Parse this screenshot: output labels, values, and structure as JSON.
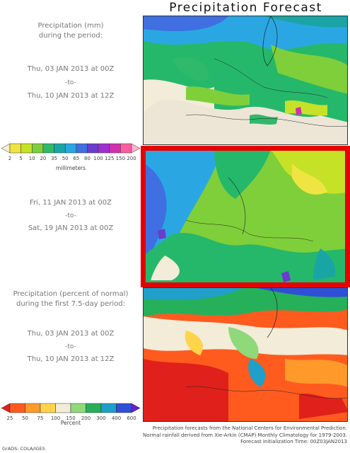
{
  "title": "Precipitation Forecast",
  "panel1": {
    "heading_line1": "Precipitation (mm)",
    "heading_line2": "during the period:",
    "from": "Thu, 03 JAN 2013 at 00Z",
    "separator": "-to-",
    "to": "Thu, 10 JAN 2013 at 12Z"
  },
  "panel2": {
    "from": "Fri, 11 JAN 2013 at 00Z",
    "separator": "-to-",
    "to": "Sat, 19 JAN 2013 at 00Z"
  },
  "panel3": {
    "heading_line1": "Precipitation (percent of normal)",
    "heading_line2": "during the first 7.5-day period:",
    "from": "Thu, 03 JAN 2013 at 00Z",
    "separator": "-to-",
    "to": "Thu, 10 JAN 2013 at 12Z"
  },
  "colorbar_mm": {
    "unit": "millimeters",
    "ticks": [
      "2",
      "5",
      "10",
      "20",
      "35",
      "50",
      "65",
      "80",
      "100",
      "125",
      "150",
      "200"
    ],
    "colors": [
      "#f7efd3",
      "#f0e442",
      "#c6e227",
      "#7fcf3a",
      "#2fb96a",
      "#1aa5a5",
      "#2aa7e3",
      "#3f6fe0",
      "#6a3ccc",
      "#a030d0",
      "#d12fb0",
      "#ff5fa0",
      "#ffb0cf"
    ]
  },
  "colorbar_pct": {
    "unit": "Percent",
    "ticks": [
      "25",
      "50",
      "75",
      "100",
      "150",
      "200",
      "300",
      "400",
      "600"
    ],
    "colors": [
      "#e0201a",
      "#ff5b1f",
      "#ff9a2a",
      "#ffd44a",
      "#f3ecd8",
      "#8fd97a",
      "#26b05a",
      "#1f9fc9",
      "#2f4fd6",
      "#6a1fcc"
    ]
  },
  "footer": {
    "line1": "Precipitation forecasts from the National Centers for Environmental Prediction.",
    "line2": "Normal rainfall derived from Xie-Arkin (CMAP) Monthly Climatology for 1979-2003.",
    "line3": "Forecast Initialization Time: 00Z03JAN2013"
  },
  "credit": "GrADS: COLA/IGES"
}
